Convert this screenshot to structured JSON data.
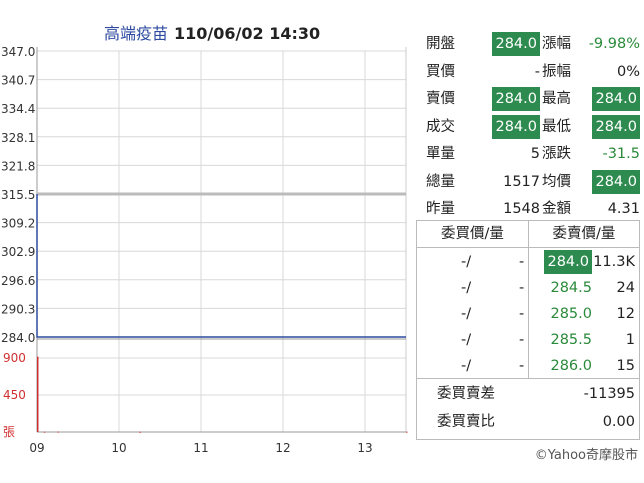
{
  "header": {
    "stock_name": "高端疫苗",
    "datetime": "110/06/02 14:30"
  },
  "chart_data": {
    "type": "line",
    "y_ticks": [
      "347.0",
      "340.7",
      "334.4",
      "328.1",
      "321.8",
      "315.5",
      "309.2",
      "302.9",
      "296.6",
      "290.3",
      "284.0"
    ],
    "ylim": [
      284.0,
      347.0
    ],
    "reference_price": 315.5,
    "x_ticks": [
      "09",
      "10",
      "11",
      "12",
      "13"
    ],
    "series": [
      {
        "values": [
          {
            "t": "09:00",
            "price": 315.5
          },
          {
            "t": "09:00",
            "price": 284.0
          },
          {
            "t": "13:30",
            "price": 284.0
          }
        ]
      }
    ],
    "volume": {
      "y_ticks": [
        "900",
        "450",
        "張"
      ],
      "ylim": [
        0,
        900
      ],
      "bars": [
        {
          "t": "09:00",
          "volume": 880
        },
        {
          "t": "09:05",
          "volume": 4
        },
        {
          "t": "09:15",
          "volume": 5
        },
        {
          "t": "10:15",
          "volume": 3
        },
        {
          "t": "13:30",
          "volume": 4
        }
      ]
    },
    "colors": {
      "price_line": "#2c4aa0",
      "reference_line": "#bbbbbb",
      "volume": "#d03030"
    }
  },
  "quote": {
    "rows": [
      {
        "l1": "開盤",
        "v1": "284.0",
        "h1": true,
        "l2": "漲幅",
        "v2": "-9.98%",
        "h2": false,
        "n2": true
      },
      {
        "l1": "買價",
        "v1": "-",
        "h1": false,
        "l2": "振幅",
        "v2": "0%",
        "h2": false,
        "n2": false
      },
      {
        "l1": "賣價",
        "v1": "284.0",
        "h1": true,
        "l2": "最高",
        "v2": "284.0",
        "h2": true,
        "n2": false
      },
      {
        "l1": "成交",
        "v1": "284.0",
        "h1": true,
        "l2": "最低",
        "v2": "284.0",
        "h2": true,
        "n2": false
      },
      {
        "l1": "單量",
        "v1": "5",
        "h1": false,
        "l2": "漲跌",
        "v2": "-31.5",
        "h2": false,
        "n2": true
      },
      {
        "l1": "總量",
        "v1": "1517",
        "h1": false,
        "l2": "均價",
        "v2": "284.0",
        "h2": true,
        "n2": false
      },
      {
        "l1": "昨量",
        "v1": "1548",
        "h1": false,
        "l2": "金額",
        "v2": "4.31",
        "h2": false,
        "n2": false
      }
    ]
  },
  "order_book": {
    "bid_header": "委買價/量",
    "ask_header": "委賣價/量",
    "rows": [
      {
        "bid_price": "-/",
        "bid_vol": "-",
        "ask_price": "284.0",
        "ask_vol": "11.3K",
        "highlight": true
      },
      {
        "bid_price": "-/",
        "bid_vol": "-",
        "ask_price": "284.5",
        "ask_vol": "24",
        "highlight": false
      },
      {
        "bid_price": "-/",
        "bid_vol": "-",
        "ask_price": "285.0",
        "ask_vol": "12",
        "highlight": false
      },
      {
        "bid_price": "-/",
        "bid_vol": "-",
        "ask_price": "285.5",
        "ask_vol": "1",
        "highlight": false
      },
      {
        "bid_price": "-/",
        "bid_vol": "-",
        "ask_price": "286.0",
        "ask_vol": "15",
        "highlight": false
      }
    ],
    "diff_label": "委買賣差",
    "diff_value": "-11395",
    "ratio_label": "委買賣比",
    "ratio_value": "0.00"
  },
  "footer": {
    "copyright": "©Yahoo奇摩股市"
  }
}
